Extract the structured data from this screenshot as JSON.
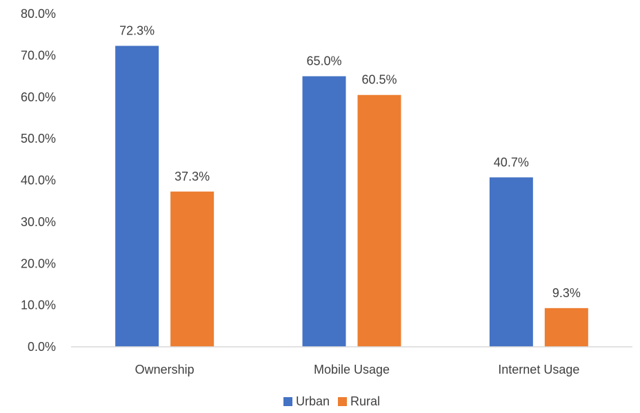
{
  "chart_data": {
    "type": "bar",
    "categories": [
      "Ownership",
      "Mobile Usage",
      "Internet Usage"
    ],
    "series": [
      {
        "name": "Urban",
        "values": [
          72.3,
          65.0,
          40.7
        ],
        "labels": [
          "72.3%",
          "65.0%",
          "40.7%"
        ],
        "color": "#4472c4"
      },
      {
        "name": "Rural",
        "values": [
          37.3,
          60.5,
          9.3
        ],
        "labels": [
          "37.3%",
          "60.5%",
          "9.3%"
        ],
        "color": "#ed7d31"
      }
    ],
    "ylim": [
      0,
      80
    ],
    "yticks": [
      "0.0%",
      "10.0%",
      "20.0%",
      "30.0%",
      "40.0%",
      "50.0%",
      "60.0%",
      "70.0%",
      "80.0%"
    ],
    "grid": false,
    "legend_position": "bottom"
  }
}
